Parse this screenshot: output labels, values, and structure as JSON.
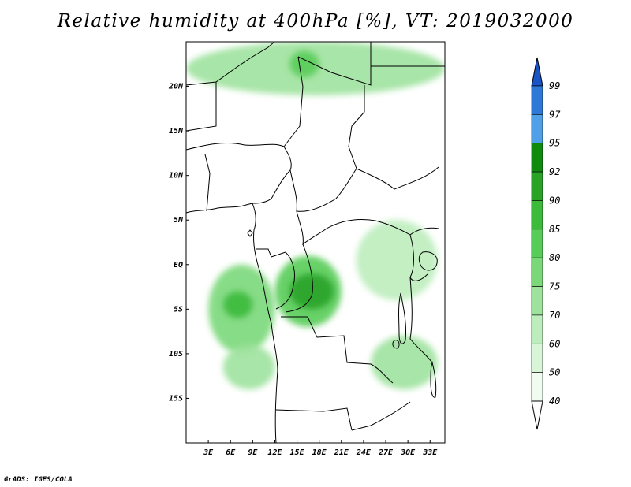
{
  "title": "Relative humidity at 400hPa [%], VT: 2019032000",
  "credit": "GrADS: IGES/COLA",
  "map": {
    "lon_range": [
      0,
      35
    ],
    "lat_range": [
      -20,
      25
    ],
    "lat_ticks": [
      {
        "lat": 20,
        "label": "20N"
      },
      {
        "lat": 15,
        "label": "15N"
      },
      {
        "lat": 10,
        "label": "10N"
      },
      {
        "lat": 5,
        "label": "5N"
      },
      {
        "lat": 0,
        "label": "EQ"
      },
      {
        "lat": -5,
        "label": "5S"
      },
      {
        "lat": -10,
        "label": "10S"
      },
      {
        "lat": -15,
        "label": "15S"
      }
    ],
    "lon_ticks": [
      {
        "lon": 3,
        "label": "3E"
      },
      {
        "lon": 6,
        "label": "6E"
      },
      {
        "lon": 9,
        "label": "9E"
      },
      {
        "lon": 12,
        "label": "12E"
      },
      {
        "lon": 15,
        "label": "15E"
      },
      {
        "lon": 18,
        "label": "18E"
      },
      {
        "lon": 21,
        "label": "21E"
      },
      {
        "lon": 24,
        "label": "24E"
      },
      {
        "lon": 27,
        "label": "27E"
      },
      {
        "lon": 30,
        "label": "30E"
      },
      {
        "lon": 33,
        "label": "33E"
      }
    ],
    "humidity_regions": [
      {
        "region": "northern-band",
        "lon": [
          0,
          35
        ],
        "lat": [
          19,
          25
        ],
        "rh": 65
      },
      {
        "region": "northern-band-core",
        "lon": [
          14,
          18
        ],
        "lat": [
          21,
          24
        ],
        "rh": 78
      },
      {
        "region": "congo-basin-west",
        "lon": [
          3,
          12
        ],
        "lat": [
          -10,
          0
        ],
        "rh": 72
      },
      {
        "region": "congo-basin-core",
        "lon": [
          5,
          9
        ],
        "lat": [
          -6,
          -3
        ],
        "rh": 82
      },
      {
        "region": "congo-central",
        "lon": [
          12,
          21
        ],
        "lat": [
          -7,
          1
        ],
        "rh": 75
      },
      {
        "region": "congo-central-core",
        "lon": [
          14,
          20
        ],
        "lat": [
          -5,
          -1
        ],
        "rh": 85
      },
      {
        "region": "angola-south",
        "lon": [
          5,
          12
        ],
        "lat": [
          -14,
          -9
        ],
        "rh": 60
      },
      {
        "region": "zambia-east",
        "lon": [
          25,
          34
        ],
        "lat": [
          -14,
          -8
        ],
        "rh": 68
      },
      {
        "region": "east-africa",
        "lon": [
          23,
          34
        ],
        "lat": [
          -4,
          5
        ],
        "rh": 55
      }
    ]
  },
  "legend": {
    "levels": [
      "99",
      "97",
      "95",
      "92",
      "90",
      "85",
      "80",
      "75",
      "70",
      "60",
      "50",
      "40"
    ],
    "colors": [
      "#1a55c8",
      "#2e78d8",
      "#50a0e8",
      "#0e8a0e",
      "#28a328",
      "#3cba3c",
      "#58cc58",
      "#7ad87a",
      "#9ee29e",
      "#bdedbd",
      "#d8f5d8",
      "#f0fcf0"
    ]
  }
}
